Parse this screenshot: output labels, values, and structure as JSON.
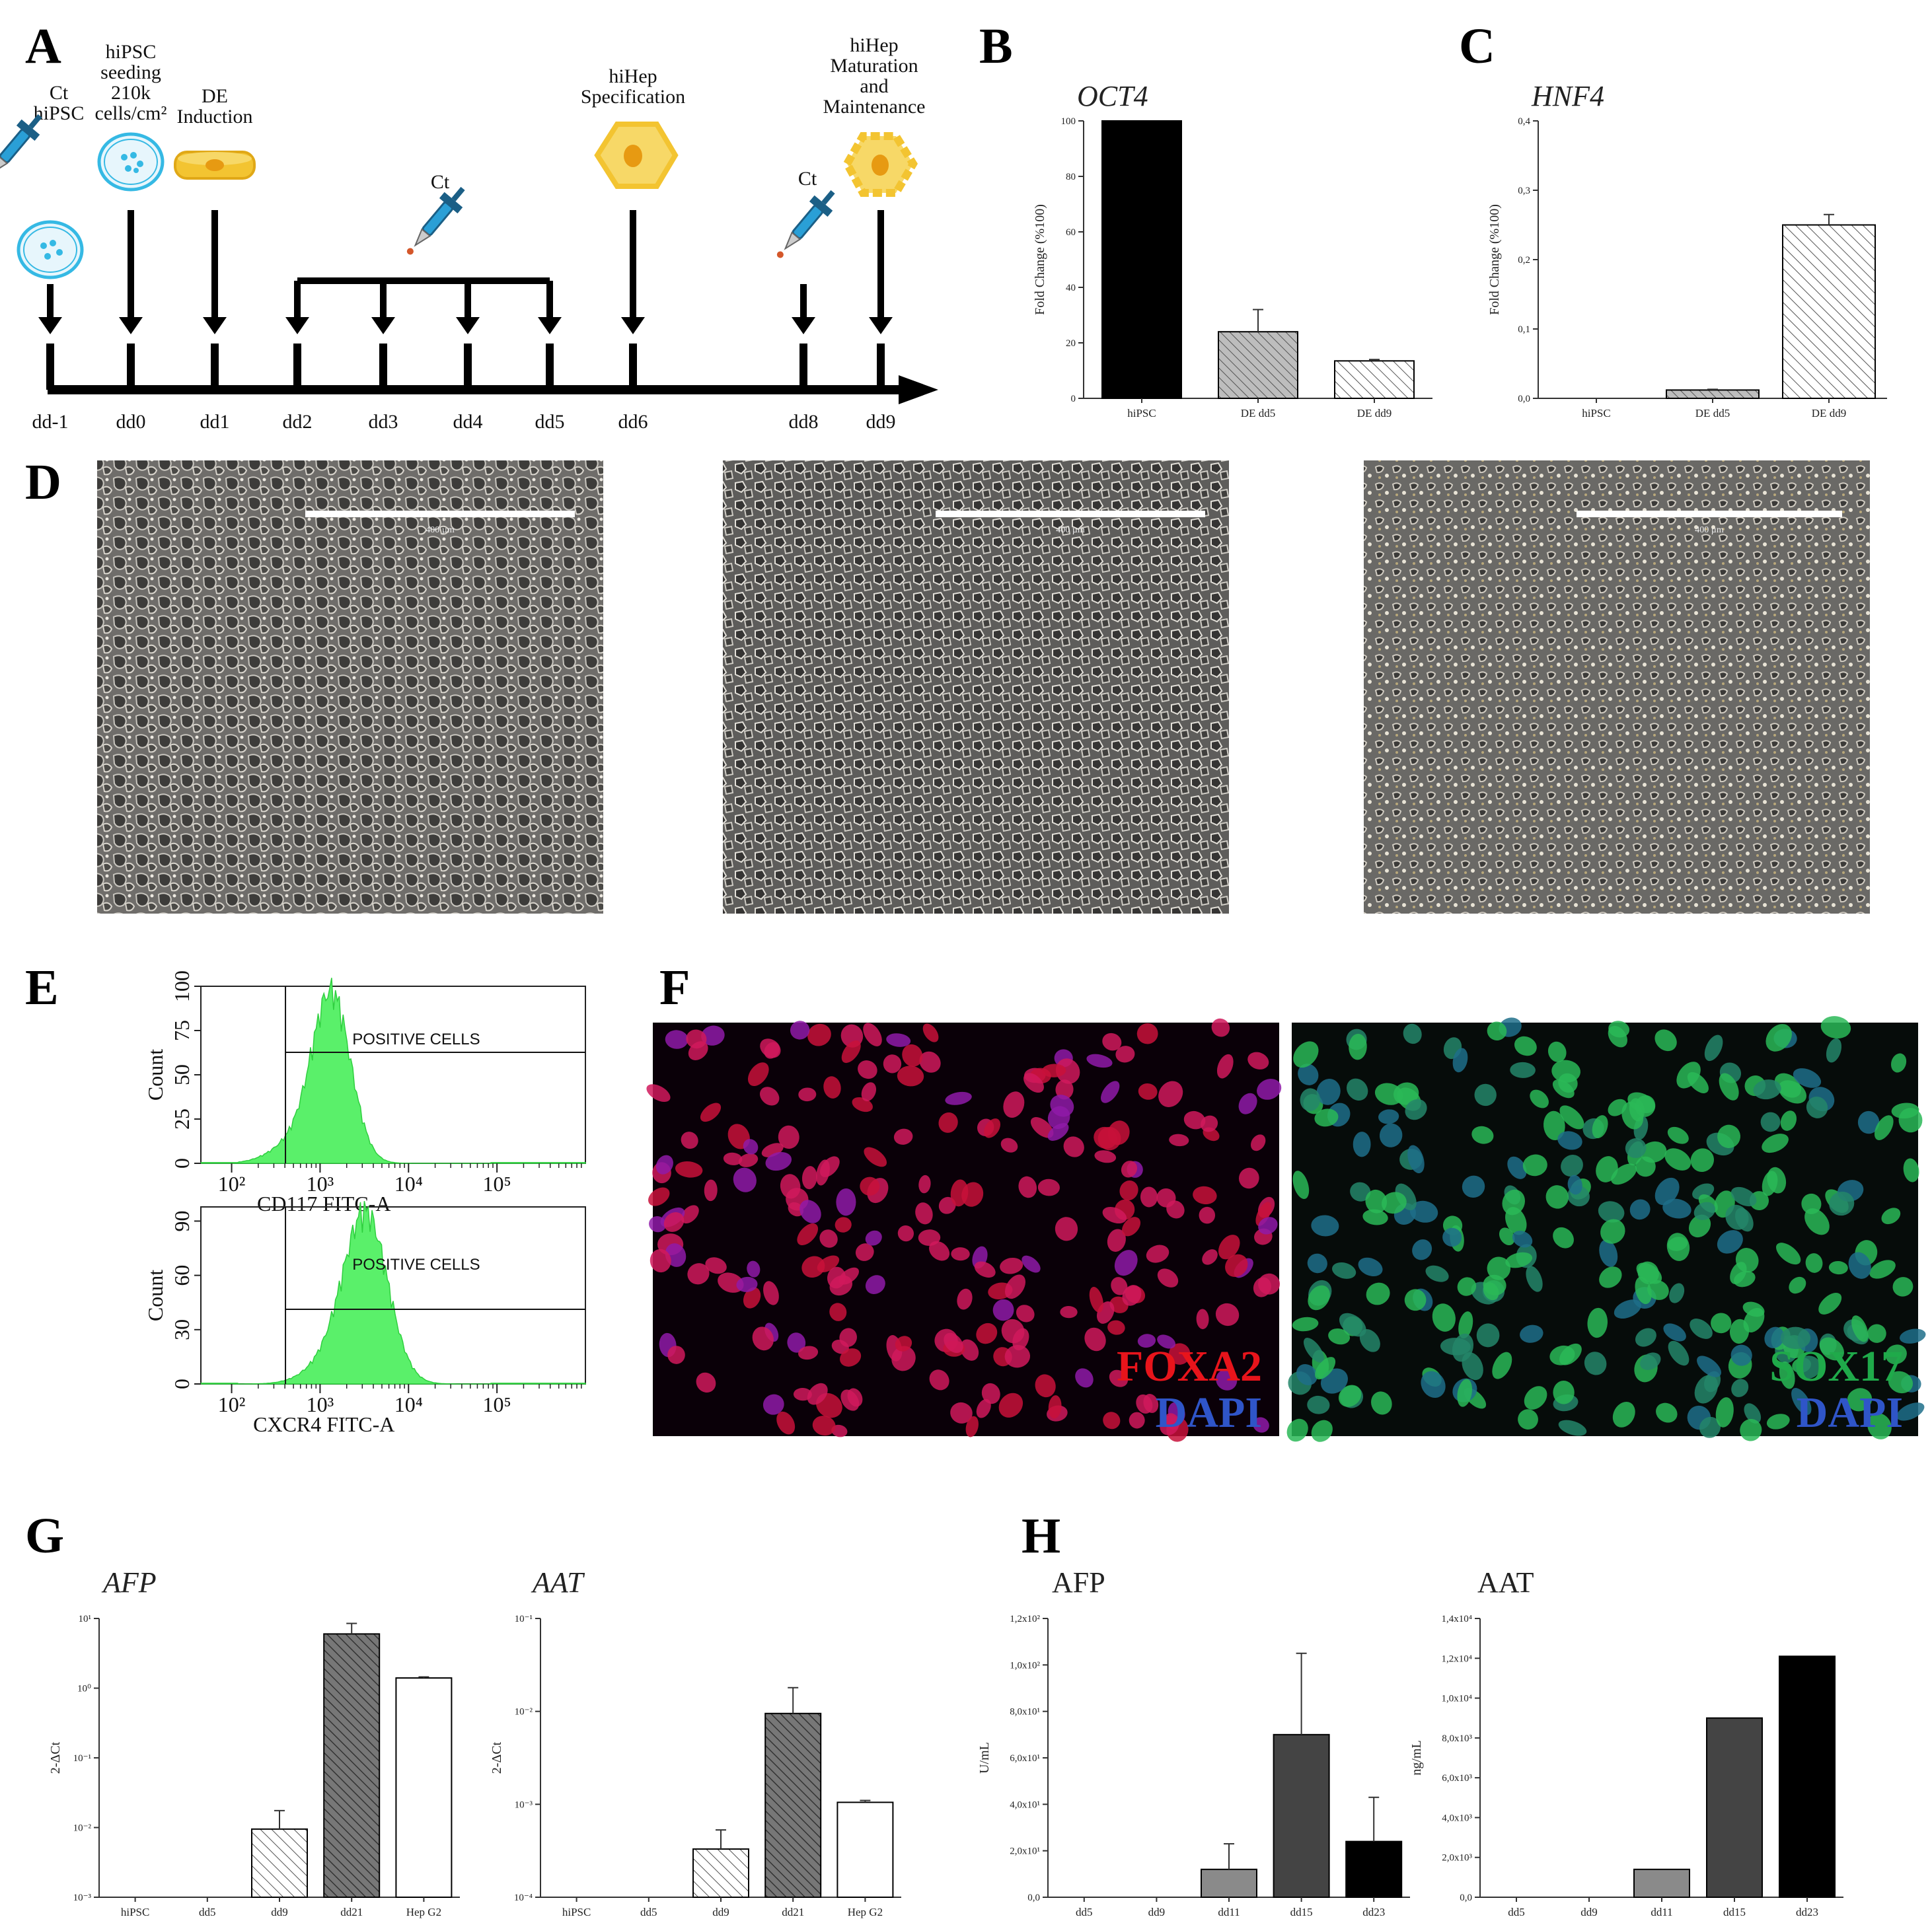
{
  "panel_labels": [
    "A",
    "B",
    "C",
    "D",
    "E",
    "F",
    "G",
    "H"
  ],
  "timeline": {
    "days": [
      "dd-1",
      "dd0",
      "dd1",
      "dd2",
      "dd3",
      "dd4",
      "dd5",
      "dd6",
      "dd8",
      "dd9"
    ],
    "steps": [
      {
        "lines": [
          "Ct",
          "hiPSC"
        ]
      },
      {
        "lines": [
          "hiPSC",
          "seeding",
          "210k",
          "cells/cm²"
        ]
      },
      {
        "lines": [
          "DE",
          "Induction"
        ]
      },
      {
        "lines": [
          "Ct"
        ]
      },
      {
        "lines": [
          "hiHep",
          "Specification"
        ]
      },
      {
        "lines": [
          "Ct"
        ]
      },
      {
        "lines": [
          "hiHep",
          "Maturation",
          "and",
          "Maintenance"
        ]
      }
    ]
  },
  "chart_data": [
    {
      "id": "B",
      "type": "bar",
      "title": "OCT4",
      "ylabel": "Fold Change (%100)",
      "categories": [
        "hiPSC",
        "DE dd5",
        "DE dd9"
      ],
      "values": [
        100,
        24,
        13.5
      ],
      "errors": [
        0,
        8,
        0.5
      ],
      "ylim": [
        0,
        100
      ],
      "yticks": [
        "0",
        "20",
        "40",
        "60",
        "80",
        "100"
      ]
    },
    {
      "id": "C",
      "type": "bar",
      "title": "HNF4",
      "ylabel": "Fold Change (%100)",
      "categories": [
        "hiPSC",
        "DE dd5",
        "DE dd9"
      ],
      "values": [
        0,
        0.012,
        0.25
      ],
      "errors": [
        0,
        0.001,
        0.015
      ],
      "ylim": [
        0,
        0.4
      ],
      "yticks": [
        "0,0",
        "0,1",
        "0,2",
        "0,3",
        "0,4"
      ]
    },
    {
      "id": "G1",
      "type": "bar",
      "title": "AFP",
      "ylabel": "2-ΔCt",
      "categories": [
        "hiPSC",
        "dd5",
        "dd9",
        "dd21",
        "Hep G2"
      ],
      "values": [
        0,
        0,
        0.0095,
        6,
        1.4
      ],
      "errors": [
        0,
        0,
        0.008,
        2.5,
        0.05
      ],
      "scale": "log",
      "ylim": [
        0.001,
        10
      ],
      "yticks": [
        "10⁻³",
        "10⁻²",
        "10⁻¹",
        "10⁰",
        "10¹"
      ]
    },
    {
      "id": "G2",
      "type": "bar",
      "title": "AAT",
      "ylabel": "2-ΔCt",
      "categories": [
        "hiPSC",
        "dd5",
        "dd9",
        "dd21",
        "Hep G2"
      ],
      "values": [
        0,
        0,
        0.00033,
        0.0095,
        0.00105
      ],
      "errors": [
        0,
        0,
        0.0002,
        0.0085,
        5e-05
      ],
      "scale": "log",
      "ylim": [
        0.0001,
        0.1
      ],
      "yticks": [
        "10⁻⁴",
        "10⁻³",
        "10⁻²",
        "10⁻¹"
      ]
    },
    {
      "id": "H1",
      "type": "bar",
      "title": "AFP",
      "ylabel": "U/mL",
      "categories": [
        "dd5",
        "dd9",
        "dd11",
        "dd15",
        "dd23"
      ],
      "values": [
        0,
        0,
        12,
        70,
        24
      ],
      "errors": [
        0,
        0,
        11,
        35,
        19
      ],
      "ylim": [
        0,
        120
      ],
      "yticks": [
        "0,0",
        "2,0x10¹",
        "4,0x10¹",
        "6,0x10¹",
        "8,0x10¹",
        "1,0x10²",
        "1,2x10²"
      ]
    },
    {
      "id": "H2",
      "type": "bar",
      "title": "AAT",
      "ylabel": "ng/mL",
      "categories": [
        "dd5",
        "dd9",
        "dd11",
        "dd15",
        "dd23"
      ],
      "values": [
        0,
        0,
        1400,
        9000,
        12100
      ],
      "errors": [
        0,
        0,
        0,
        0,
        0
      ],
      "ylim": [
        0,
        14000
      ],
      "yticks": [
        "0,0",
        "2,0x10³",
        "4,0x10³",
        "6,0x10³",
        "8,0x10³",
        "1,0x10⁴",
        "1,2x10⁴",
        "1,4x10⁴"
      ]
    }
  ],
  "flow": [
    {
      "xlabel": "CD117 FITC-A",
      "ylabel": "Count",
      "gate_label": "POSITIVE CELLS",
      "yticks": [
        "0",
        "25",
        "50",
        "75",
        "100"
      ],
      "xticks": [
        "10²",
        "10³",
        "10⁴",
        "10⁵"
      ]
    },
    {
      "xlabel": "CXCR4 FITC-A",
      "ylabel": "Count",
      "gate_label": "POSITIVE CELLS",
      "yticks": [
        "0",
        "30",
        "60",
        "90"
      ],
      "xticks": [
        "10²",
        "10³",
        "10⁴",
        "10⁵"
      ]
    }
  ],
  "stains": [
    {
      "marker": "FOXA2",
      "counter": "DAPI",
      "marker_color": "#e8141b",
      "counter_color": "#2f55c8"
    },
    {
      "marker": "SOX17",
      "counter": "DAPI",
      "marker_color": "#1faa4a",
      "counter_color": "#2f55c8"
    }
  ],
  "scale_bar_labels": [
    "400 µm",
    "400 µm",
    "400 µm"
  ],
  "colors": {
    "pipette": "#2a9fd6",
    "dish": "#35b9e4",
    "hep": "#f3c431",
    "flow": "#5af06a"
  }
}
